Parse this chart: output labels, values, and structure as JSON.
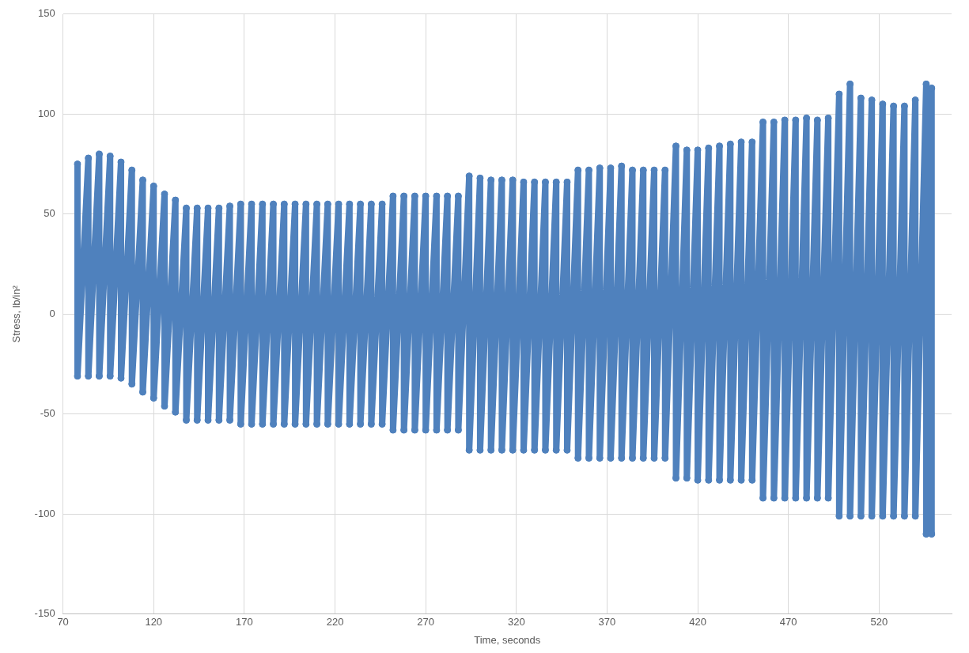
{
  "chart_data": {
    "type": "line",
    "xlabel": "Time, seconds",
    "ylabel": "Stress, lb/in²",
    "xlim": [
      70,
      560
    ],
    "xticks": [
      70,
      120,
      170,
      220,
      270,
      320,
      370,
      420,
      470,
      520
    ],
    "ylim": [
      -150,
      150
    ],
    "yticks": [
      -150,
      -100,
      -50,
      0,
      50,
      100,
      150
    ],
    "grid": true,
    "legend": false,
    "marker": "circle",
    "line_style": "solid",
    "series": [
      {
        "color": "#4f81bd",
        "x": [
          78,
          78,
          84,
          84,
          90,
          90,
          96,
          96,
          102,
          102,
          108,
          108,
          114,
          114,
          120,
          120,
          126,
          126,
          132,
          132,
          138,
          138,
          144,
          144,
          150,
          150,
          156,
          156,
          162,
          162,
          168,
          168,
          174,
          174,
          180,
          180,
          186,
          186,
          192,
          192,
          198,
          198,
          204,
          204,
          210,
          210,
          216,
          216,
          222,
          222,
          228,
          228,
          234,
          234,
          240,
          240,
          246,
          246,
          252,
          252,
          258,
          258,
          264,
          264,
          270,
          270,
          276,
          276,
          282,
          282,
          288,
          288,
          294,
          294,
          300,
          300,
          306,
          306,
          312,
          312,
          318,
          318,
          324,
          324,
          330,
          330,
          336,
          336,
          342,
          342,
          348,
          348,
          354,
          354,
          360,
          360,
          366,
          366,
          372,
          372,
          378,
          378,
          384,
          384,
          390,
          390,
          396,
          396,
          402,
          402,
          408,
          408,
          414,
          414,
          420,
          420,
          426,
          426,
          432,
          432,
          438,
          438,
          444,
          444,
          450,
          450,
          456,
          456,
          462,
          462,
          468,
          468,
          474,
          474,
          480,
          480,
          486,
          486,
          492,
          492,
          498,
          498,
          504,
          504,
          510,
          510,
          516,
          516,
          522,
          522,
          528,
          528,
          534,
          534,
          540,
          540,
          546,
          546,
          549,
          549
        ],
        "values": [
          75,
          -31,
          78,
          -31,
          80,
          -31,
          79,
          -31,
          76,
          -32,
          72,
          -35,
          67,
          -39,
          64,
          -42,
          60,
          -46,
          57,
          -49,
          53,
          -53,
          53,
          -53,
          53,
          -53,
          53,
          -53,
          54,
          -53,
          55,
          -55,
          55,
          -55,
          55,
          -55,
          55,
          -55,
          55,
          -55,
          55,
          -55,
          55,
          -55,
          55,
          -55,
          55,
          -55,
          55,
          -55,
          55,
          -55,
          55,
          -55,
          55,
          -55,
          55,
          -55,
          59,
          -58,
          59,
          -58,
          59,
          -58,
          59,
          -58,
          59,
          -58,
          59,
          -58,
          59,
          -58,
          69,
          -68,
          68,
          -68,
          67,
          -68,
          67,
          -68,
          67,
          -68,
          66,
          -68,
          66,
          -68,
          66,
          -68,
          66,
          -68,
          66,
          -68,
          72,
          -72,
          72,
          -72,
          73,
          -72,
          73,
          -72,
          74,
          -72,
          72,
          -72,
          72,
          -72,
          72,
          -72,
          72,
          -72,
          84,
          -82,
          82,
          -82,
          82,
          -83,
          83,
          -83,
          84,
          -83,
          85,
          -83,
          86,
          -83,
          86,
          -83,
          96,
          -92,
          96,
          -92,
          97,
          -92,
          97,
          -92,
          98,
          -92,
          97,
          -92,
          98,
          -92,
          110,
          -101,
          115,
          -101,
          108,
          -101,
          107,
          -101,
          105,
          -101,
          104,
          -101,
          104,
          -101,
          107,
          -101,
          115,
          -110,
          113,
          -110
        ]
      }
    ]
  }
}
